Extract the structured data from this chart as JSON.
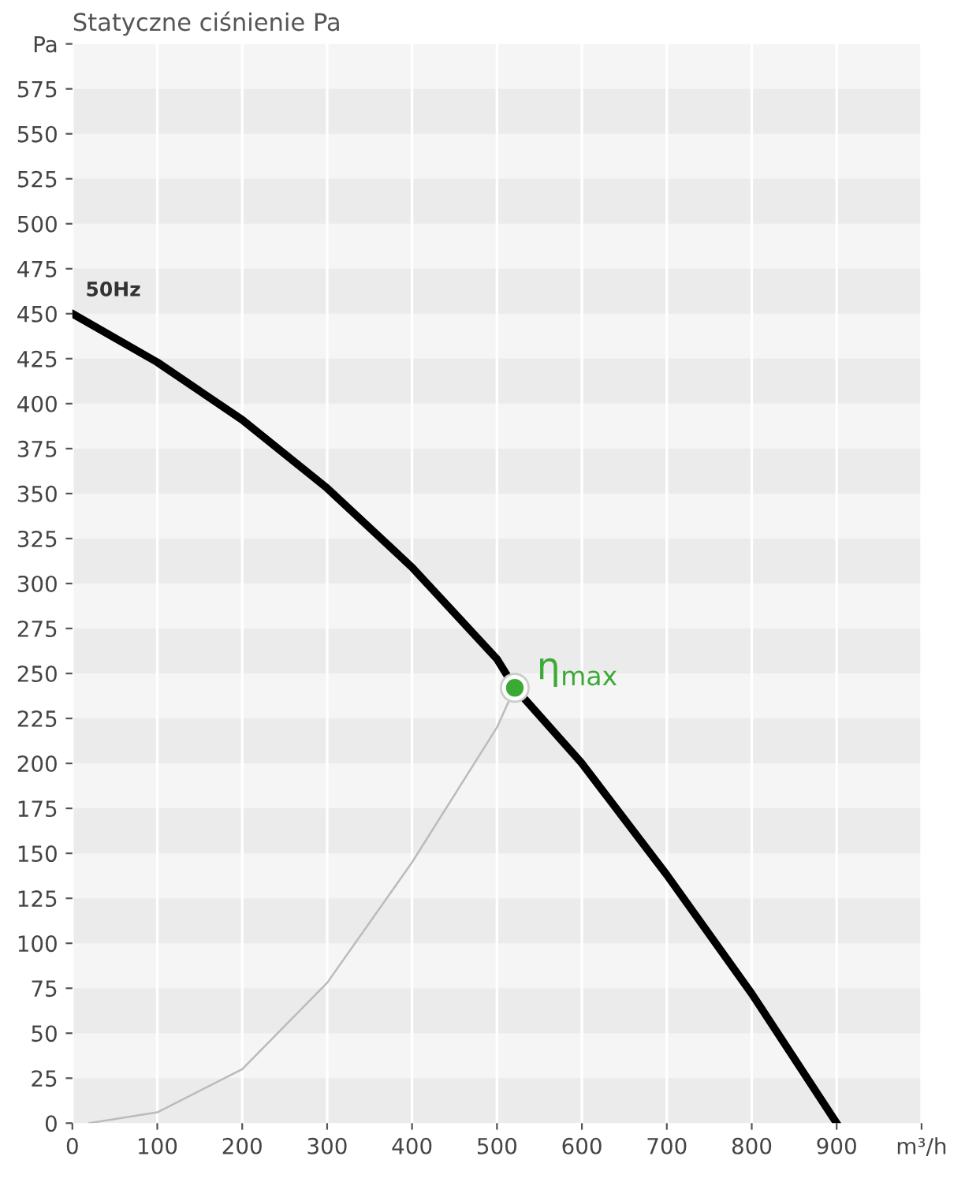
{
  "chart_data": {
    "type": "line",
    "title": "Statyczne ciśnienie Pa",
    "xlim": [
      0,
      1000
    ],
    "xticks": [
      0,
      100,
      200,
      300,
      400,
      500,
      600,
      700,
      800,
      900,
      {
        "value": 1000,
        "label": "m³/h"
      }
    ],
    "ylim": [
      0,
      600
    ],
    "yticks": [
      0,
      25,
      50,
      75,
      100,
      125,
      150,
      175,
      200,
      225,
      250,
      275,
      300,
      325,
      350,
      375,
      400,
      425,
      450,
      475,
      500,
      525,
      550,
      575,
      {
        "value": 600,
        "label": "Pa"
      }
    ],
    "series": [
      {
        "name": "50Hz",
        "color": "#000000",
        "x": [
          0,
          100,
          200,
          300,
          400,
          500,
          521,
          600,
          700,
          800,
          900
        ],
        "values": [
          450,
          423,
          391,
          353,
          309,
          258,
          242,
          200,
          138,
          72,
          0
        ]
      },
      {
        "color": "#bbbbbb",
        "x": [
          20,
          100,
          200,
          300,
          400,
          500,
          521
        ],
        "values": [
          0,
          6,
          30,
          78,
          145,
          220,
          242
        ]
      },
      {
        "type": "scatter",
        "marker": "circle",
        "color": "#3aaa35",
        "x": [
          521
        ],
        "values": [
          242
        ]
      }
    ],
    "annotations": [
      {
        "text": "η$_{max}$",
        "x": 521,
        "y": 242
      }
    ],
    "grid": true,
    "legend": false,
    "marker": "none",
    "line_style": "solid"
  }
}
